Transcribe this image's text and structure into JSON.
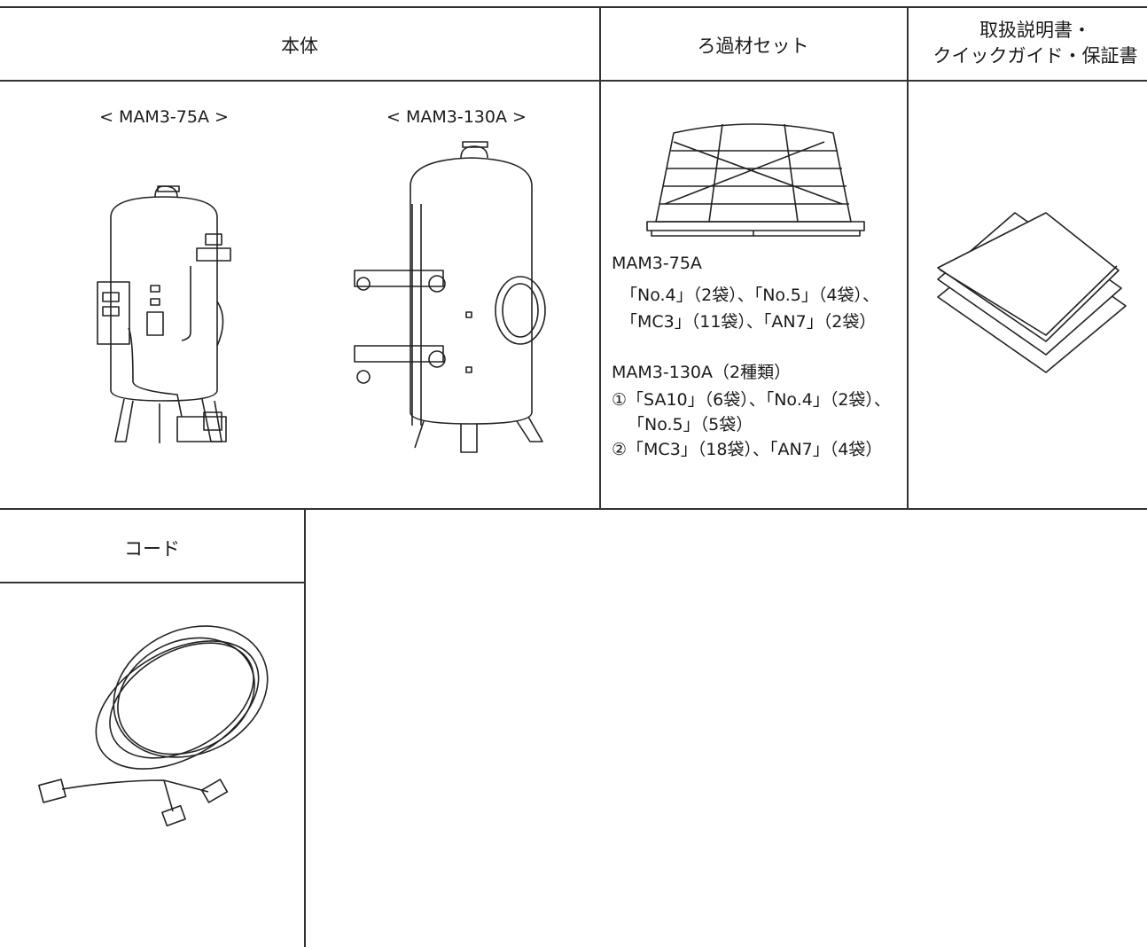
{
  "table": {
    "headers": [
      "本体",
      "ろ過材セット",
      [
        "取扱説明書・",
        "クイックガイド・保証書"
      ]
    ],
    "main_unit": {
      "models": [
        "< MAM3-75A >",
        "< MAM3-130A >"
      ]
    },
    "filter_set": {
      "groups": [
        {
          "title": "MAM3-75A",
          "lines": [
            "「No.4」（2袋）、「No.5」（4袋）、",
            "「MC3」（11袋）、「AN7」（2袋）"
          ]
        },
        {
          "title": "MAM3-130A（2種類）",
          "lines": [
            "①「SA10」（6袋）、「No.4」（2袋）、",
            "「No.5」（5袋）",
            "②「MC3」（18袋）、「AN7」（4袋）"
          ]
        }
      ]
    },
    "cord": {
      "header": "コード"
    }
  }
}
